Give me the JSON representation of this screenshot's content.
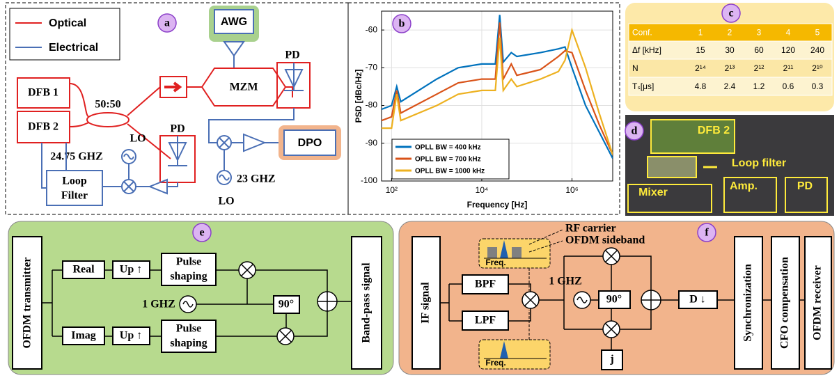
{
  "panel_a": {
    "badge": "a",
    "legend": [
      "Optical",
      "Electrical"
    ],
    "awg": "AWG",
    "mzm": "MZM",
    "dfb": [
      "DFB 1",
      "DFB 2"
    ],
    "coupler": "50:50",
    "pd": [
      "PD",
      "PD"
    ],
    "dpo": "DPO",
    "lo": [
      "LO",
      "LO"
    ],
    "lo_freq": [
      "24.75 GHZ",
      "23 GHZ"
    ],
    "loop_filter": [
      "Loop",
      "Filter"
    ]
  },
  "chart_data": {
    "type": "line",
    "badge": "b",
    "x_label": "Frequency [Hz]",
    "y_label": "PSD [dBc/Hz]",
    "x_scale": "log",
    "xlim": [
      60,
      8000000
    ],
    "xticks": [
      {
        "value": 100,
        "label": "10²"
      },
      {
        "value": 10000,
        "label": "10⁴"
      },
      {
        "value": 1000000,
        "label": "10⁶"
      }
    ],
    "ylim": [
      -100,
      -55
    ],
    "yticks": [
      -100,
      -90,
      -80,
      -70,
      -60
    ],
    "grid": true,
    "legend": "lower left",
    "x": [
      60,
      100,
      130,
      160,
      1000,
      3000,
      10000,
      20000,
      25000,
      30000,
      45000,
      60000,
      200000,
      500000,
      700000,
      1000000,
      2000000,
      4000000,
      8000000
    ],
    "series": [
      {
        "name": "OPLL BW = 400 kHz",
        "color": "#0072bd",
        "values": [
          -81,
          -80,
          -75,
          -79,
          -73,
          -70,
          -69,
          -69,
          -56,
          -68.5,
          -66,
          -67,
          -66,
          -65,
          -64.5,
          -70,
          -80,
          -87,
          -94
        ]
      },
      {
        "name": "OPLL BW = 700 kHz",
        "color": "#d95319",
        "values": [
          -84,
          -83,
          -76,
          -82,
          -77,
          -74,
          -73,
          -73,
          -58,
          -73,
          -69,
          -72,
          -70.5,
          -67,
          -65.5,
          -66,
          -76,
          -85,
          -93
        ]
      },
      {
        "name": "OPLL BW = 1000 kHz",
        "color": "#edb120",
        "values": [
          -86,
          -86,
          -77,
          -84,
          -80,
          -77,
          -76,
          -76,
          -62,
          -76,
          -73,
          -75,
          -73,
          -71,
          -68,
          -60,
          -70,
          -82,
          -93
        ]
      }
    ]
  },
  "table": {
    "badge": "c",
    "header": [
      "Conf.",
      "1",
      "2",
      "3",
      "4",
      "5"
    ],
    "rows": [
      [
        "Δf [kHz]",
        "15",
        "30",
        "60",
        "120",
        "240"
      ],
      [
        "N",
        "2¹⁴",
        "2¹³",
        "2¹²",
        "2¹¹",
        "2¹⁰"
      ],
      [
        "Tₛ[μs]",
        "4.8",
        "2.4",
        "1.2",
        "0.6",
        "0.3"
      ]
    ]
  },
  "photo": {
    "badge": "d",
    "labels": [
      "DFB 2",
      "Loop filter",
      "Mixer",
      "Amp.",
      "PD"
    ]
  },
  "panel_e": {
    "badge": "e",
    "transmitter": "OFDM transmitter",
    "real": "Real",
    "imag": "Imag",
    "up": [
      "Up ↑",
      "Up ↑"
    ],
    "pulse_shaping": [
      [
        "Pulse",
        "shaping"
      ],
      [
        "Pulse",
        "shaping"
      ]
    ],
    "lo": "1 GHZ",
    "phase": "90°",
    "output": "Band-pass signal"
  },
  "panel_f": {
    "badge": "f",
    "input": "IF signal",
    "bpf": "BPF",
    "lpf": "LPF",
    "rf_carrier": "RF carrier",
    "ofdm_sideband": "OFDM sideband",
    "freq": [
      "Freq.",
      "Freq."
    ],
    "lo": "1 GHZ",
    "phase": "90°",
    "j": "j",
    "down": "D ↓",
    "sync": "Synchronization",
    "cfo": "CFO compensation",
    "receiver": "OFDM receiver"
  }
}
